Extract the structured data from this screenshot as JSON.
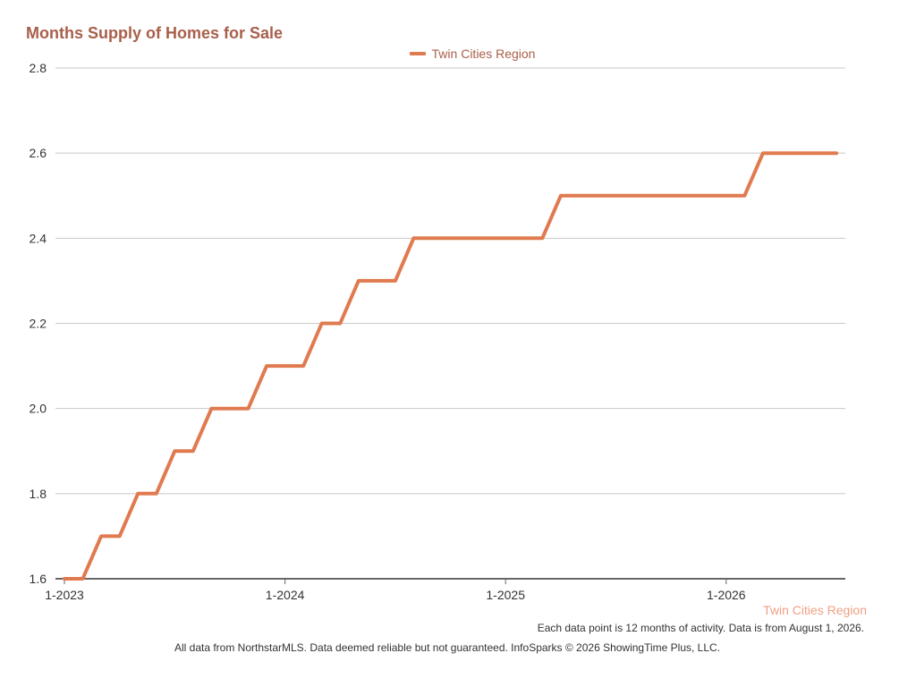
{
  "chart_data": {
    "type": "line",
    "title": "Months Supply of Homes for Sale",
    "xlabel": "",
    "ylabel": "",
    "ylim": [
      1.6,
      2.8
    ],
    "y_ticks": [
      1.6,
      1.8,
      2.0,
      2.2,
      2.4,
      2.6,
      2.8
    ],
    "y_tick_labels": [
      "1.6",
      "1.8",
      "2.0",
      "2.2",
      "2.4",
      "2.6",
      "2.8"
    ],
    "x_tick_labels": [
      "1-2023",
      "1-2024",
      "1-2025",
      "1-2026"
    ],
    "x_ticks": [
      "2023-01",
      "2024-01",
      "2025-01",
      "2026-01"
    ],
    "x": [
      "2023-01",
      "2023-02",
      "2023-03",
      "2023-04",
      "2023-05",
      "2023-06",
      "2023-07",
      "2023-08",
      "2023-09",
      "2023-10",
      "2023-11",
      "2023-12",
      "2024-01",
      "2024-02",
      "2024-03",
      "2024-04",
      "2024-05",
      "2024-06",
      "2024-07",
      "2024-08",
      "2024-09",
      "2024-10",
      "2024-11",
      "2024-12",
      "2025-01",
      "2025-02",
      "2025-03",
      "2025-04",
      "2025-05",
      "2025-06",
      "2025-07",
      "2025-08",
      "2025-09",
      "2025-10",
      "2025-11",
      "2025-12",
      "2026-01",
      "2026-02",
      "2026-03",
      "2026-04",
      "2026-05",
      "2026-06",
      "2026-07"
    ],
    "series": [
      {
        "name": "Twin Cities Region",
        "color": "#e07a4f",
        "values": [
          1.6,
          1.6,
          1.7,
          1.7,
          1.8,
          1.8,
          1.9,
          1.9,
          2.0,
          2.0,
          2.0,
          2.1,
          2.1,
          2.1,
          2.2,
          2.2,
          2.3,
          2.3,
          2.3,
          2.4,
          2.4,
          2.4,
          2.4,
          2.4,
          2.4,
          2.4,
          2.4,
          2.5,
          2.5,
          2.5,
          2.5,
          2.5,
          2.5,
          2.5,
          2.5,
          2.5,
          2.5,
          2.5,
          2.6,
          2.6,
          2.6,
          2.6,
          2.6
        ]
      }
    ],
    "grid": true,
    "legend": "top-center",
    "series_label": "Twin Cities Region",
    "footnote": "Each data point is 12 months of activity. Data is from August 1, 2026.",
    "source": "All data from NorthstarMLS. Data deemed reliable but not guaranteed. InfoSparks © 2026 ShowingTime Plus, LLC."
  },
  "colors": {
    "title": "#a85f4a",
    "line": "#e07a4f",
    "grid": "#c8c8c8",
    "axis": "#666666",
    "watermark": "#efa084"
  }
}
